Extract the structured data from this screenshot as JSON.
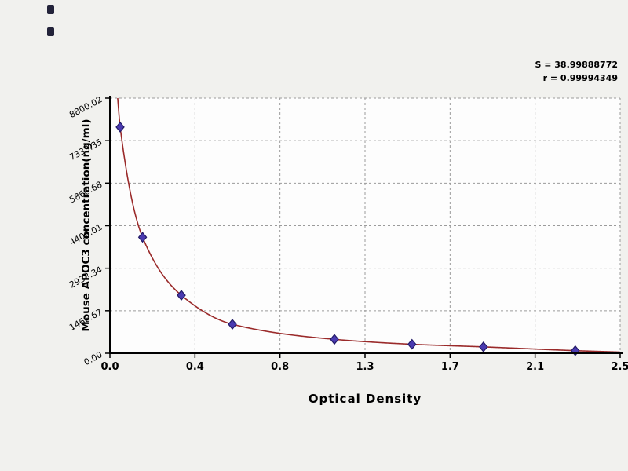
{
  "chart_data": {
    "type": "scatter",
    "title": "",
    "xlabel": "Optical Density",
    "ylabel": "Mouse APOC3 concentration(ng/ml)",
    "annotation": {
      "line1": "S = 38.99888772",
      "line2": "r = 0.99994349"
    },
    "xlim": [
      0,
      2.5
    ],
    "ylim": [
      0,
      8800.02
    ],
    "grid": "dashed",
    "legend": "none",
    "x_ticks": [
      {
        "value": 0,
        "label": "0.0"
      },
      {
        "value": 0.4167,
        "label": "0.4"
      },
      {
        "value": 0.8333,
        "label": "0.8"
      },
      {
        "value": 1.25,
        "label": "1.3"
      },
      {
        "value": 1.6667,
        "label": "1.7"
      },
      {
        "value": 2.0833,
        "label": "2.1"
      },
      {
        "value": 2.5,
        "label": "2.5"
      }
    ],
    "y_ticks": [
      {
        "value": 0,
        "label": "0.00"
      },
      {
        "value": 1466.67,
        "label": "1466.67"
      },
      {
        "value": 2933.34,
        "label": "2933.34"
      },
      {
        "value": 4400.01,
        "label": "4400.01"
      },
      {
        "value": 5866.68,
        "label": "5866.68"
      },
      {
        "value": 7333.35,
        "label": "7333.35"
      },
      {
        "value": 8800.02,
        "label": "8800.02"
      }
    ],
    "points": [
      {
        "od": 0.05,
        "concentration": 7800
      },
      {
        "od": 0.16,
        "concentration": 4000
      },
      {
        "od": 0.35,
        "concentration": 2000
      },
      {
        "od": 0.6,
        "concentration": 1000
      },
      {
        "od": 1.1,
        "concentration": 480
      },
      {
        "od": 1.48,
        "concentration": 310
      },
      {
        "od": 1.83,
        "concentration": 220
      },
      {
        "od": 2.28,
        "concentration": 90
      }
    ],
    "curve_extension": {
      "start": {
        "od": 0.038,
        "concentration": 8800.02
      },
      "end": {
        "od": 2.5,
        "concentration": 40
      }
    },
    "colors": {
      "curve": "#9a2a2a",
      "marker_fill": "#4a3ab0",
      "marker_stroke": "#221a66",
      "axis": "#000000",
      "grid": "#9b9b9b",
      "plot_background": "#fdfdfd",
      "page_background": "#f1f1ee"
    }
  }
}
